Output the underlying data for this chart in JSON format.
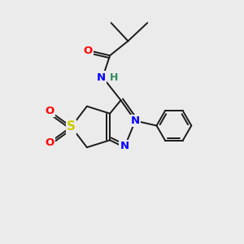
{
  "bg_color": "#ebebeb",
  "atom_colors": {
    "O": "#ff0000",
    "N": "#0000ff",
    "S": "#cccc00",
    "C": "#1a1a1a",
    "H": "#2e8b57"
  },
  "bond_color": "#1a1a1a",
  "lw": 1.4
}
